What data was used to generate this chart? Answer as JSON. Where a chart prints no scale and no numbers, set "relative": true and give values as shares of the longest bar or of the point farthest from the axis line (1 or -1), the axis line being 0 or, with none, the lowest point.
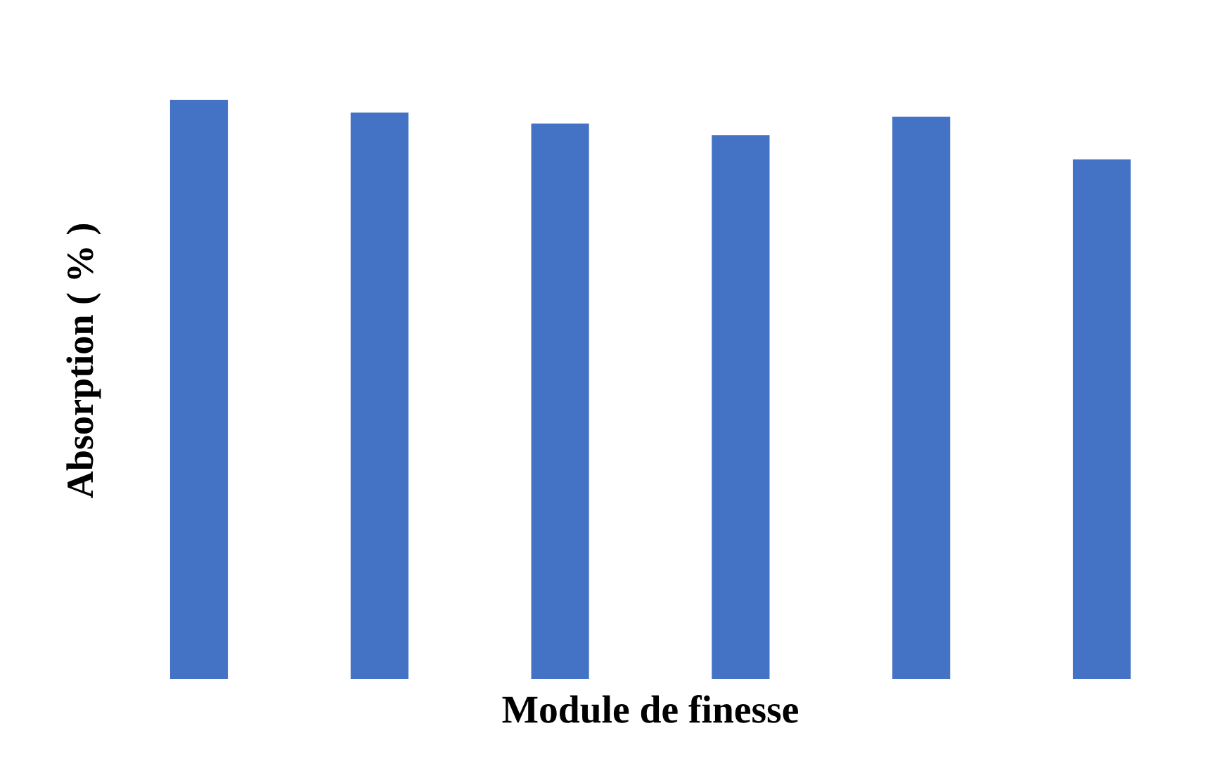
{
  "chart_data": {
    "type": "bar",
    "xlabel": "Module de finesse",
    "ylabel": "Absorption ( % )",
    "categories": [
      null,
      null,
      null,
      null,
      null,
      null
    ],
    "values": [
      1,
      0.978,
      0.959,
      0.939,
      0.971,
      0.897
    ],
    "color": "#4472c4",
    "relative": true
  }
}
